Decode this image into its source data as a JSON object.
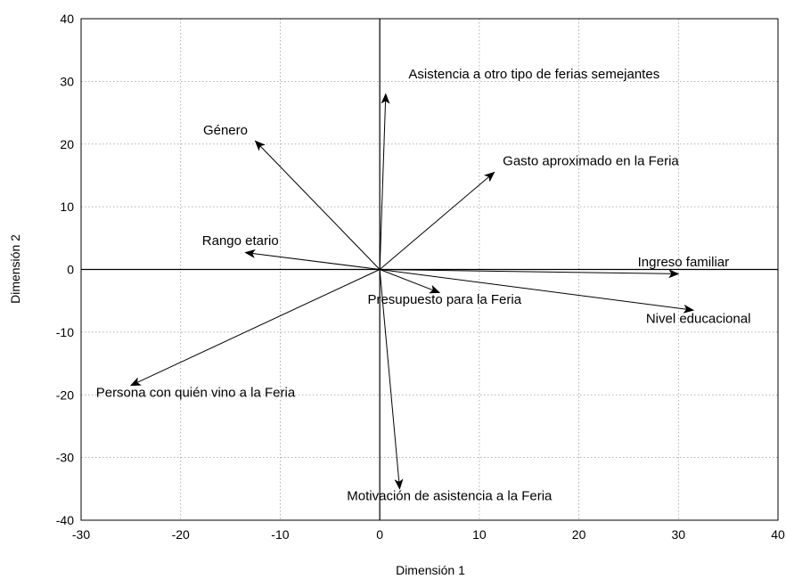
{
  "chart_data": {
    "type": "scatter",
    "title": "",
    "xlabel": "Dimensión 1",
    "ylabel": "Dimensión 2",
    "xlim": [
      -30,
      40
    ],
    "ylim": [
      -40,
      40
    ],
    "xticks": [
      -30,
      -20,
      -10,
      0,
      10,
      20,
      30,
      40
    ],
    "yticks": [
      -40,
      -30,
      -20,
      -10,
      0,
      10,
      20,
      30,
      40
    ],
    "grid": true,
    "vectors": [
      {
        "name": "Asistencia a otro tipo de ferias semejantes",
        "x": 0.6,
        "y": 28.0,
        "label_x": 15.5,
        "label_y": 30.5
      },
      {
        "name": "Género",
        "x": -12.5,
        "y": 20.5,
        "label_x": -15.5,
        "label_y": 21.5
      },
      {
        "name": "Gasto aproximado en la Feria",
        "x": 11.5,
        "y": 15.5,
        "label_x": 21.2,
        "label_y": 16.6
      },
      {
        "name": "Rango etario",
        "x": -13.5,
        "y": 2.7,
        "label_x": -14.0,
        "label_y": 3.9
      },
      {
        "name": "Ingreso familiar",
        "x": 30.0,
        "y": -0.7,
        "label_x": 30.5,
        "label_y": 0.5
      },
      {
        "name": "Presupuesto para la Feria",
        "x": 6.0,
        "y": -3.7,
        "label_x": 6.5,
        "label_y": -5.5
      },
      {
        "name": "Nivel educacional",
        "x": 31.5,
        "y": -6.5,
        "label_x": 32.0,
        "label_y": -8.5
      },
      {
        "name": "Persona con quién vino a la Feria",
        "x": -25.0,
        "y": -18.5,
        "label_x": -18.5,
        "label_y": -20.3
      },
      {
        "name": "Motivación de asistencia a la Feria",
        "x": 2.0,
        "y": -35.0,
        "label_x": 7.0,
        "label_y": -36.8
      }
    ]
  }
}
